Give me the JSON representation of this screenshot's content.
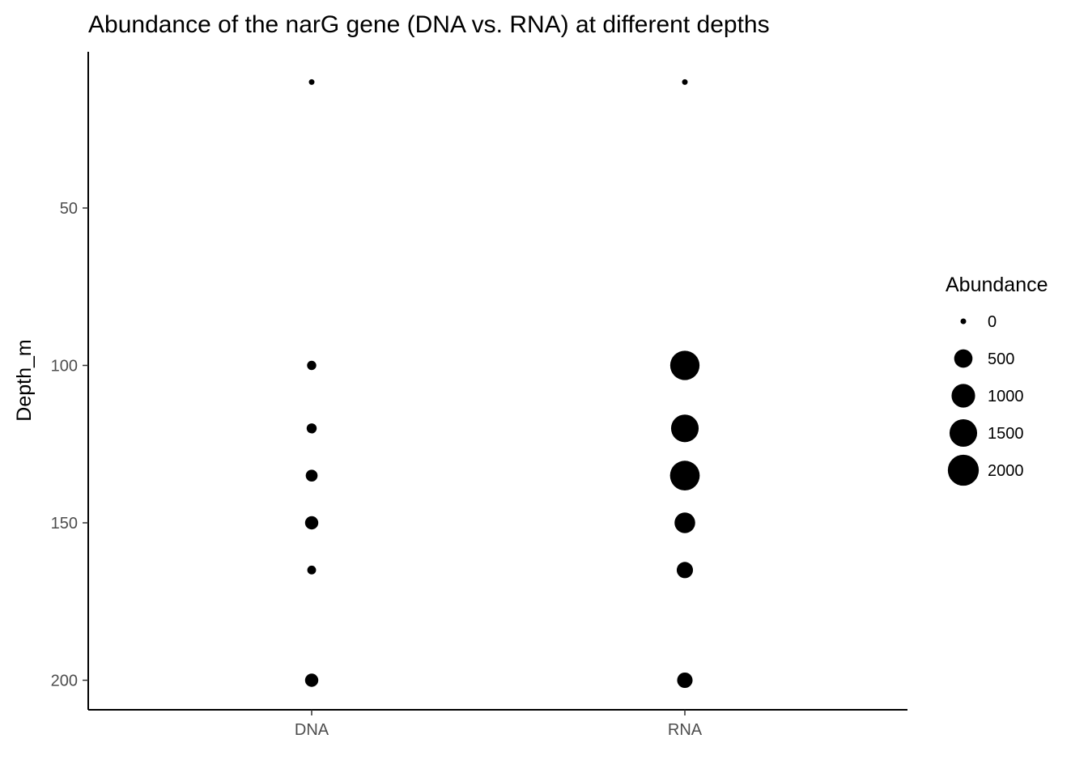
{
  "chart_data": {
    "type": "scatter",
    "title": "Abundance of the narG gene (DNA vs. RNA) at different depths",
    "xlabel": "",
    "ylabel": "Depth_m",
    "x_categories": [
      "DNA",
      "RNA"
    ],
    "y_reversed": true,
    "ylim": [
      10,
      210
    ],
    "y_ticks": [
      50,
      100,
      150,
      200
    ],
    "grid": false,
    "point_color": "#000000",
    "size_legend": {
      "title": "Abundance",
      "breaks": [
        0,
        500,
        1000,
        1500,
        2000
      ],
      "labels": [
        "0",
        "500",
        "1000",
        "1500",
        "2000"
      ],
      "position": "right"
    },
    "points": [
      {
        "x": "DNA",
        "depth": 10,
        "abundance": 0
      },
      {
        "x": "DNA",
        "depth": 100,
        "abundance": 40
      },
      {
        "x": "DNA",
        "depth": 120,
        "abundance": 60
      },
      {
        "x": "DNA",
        "depth": 135,
        "abundance": 120
      },
      {
        "x": "DNA",
        "depth": 150,
        "abundance": 180
      },
      {
        "x": "DNA",
        "depth": 165,
        "abundance": 30
      },
      {
        "x": "DNA",
        "depth": 200,
        "abundance": 180
      },
      {
        "x": "RNA",
        "depth": 10,
        "abundance": 0
      },
      {
        "x": "RNA",
        "depth": 100,
        "abundance": 1750
      },
      {
        "x": "RNA",
        "depth": 120,
        "abundance": 1500
      },
      {
        "x": "RNA",
        "depth": 135,
        "abundance": 1800
      },
      {
        "x": "RNA",
        "depth": 150,
        "abundance": 700
      },
      {
        "x": "RNA",
        "depth": 165,
        "abundance": 350
      },
      {
        "x": "RNA",
        "depth": 200,
        "abundance": 300
      }
    ]
  }
}
